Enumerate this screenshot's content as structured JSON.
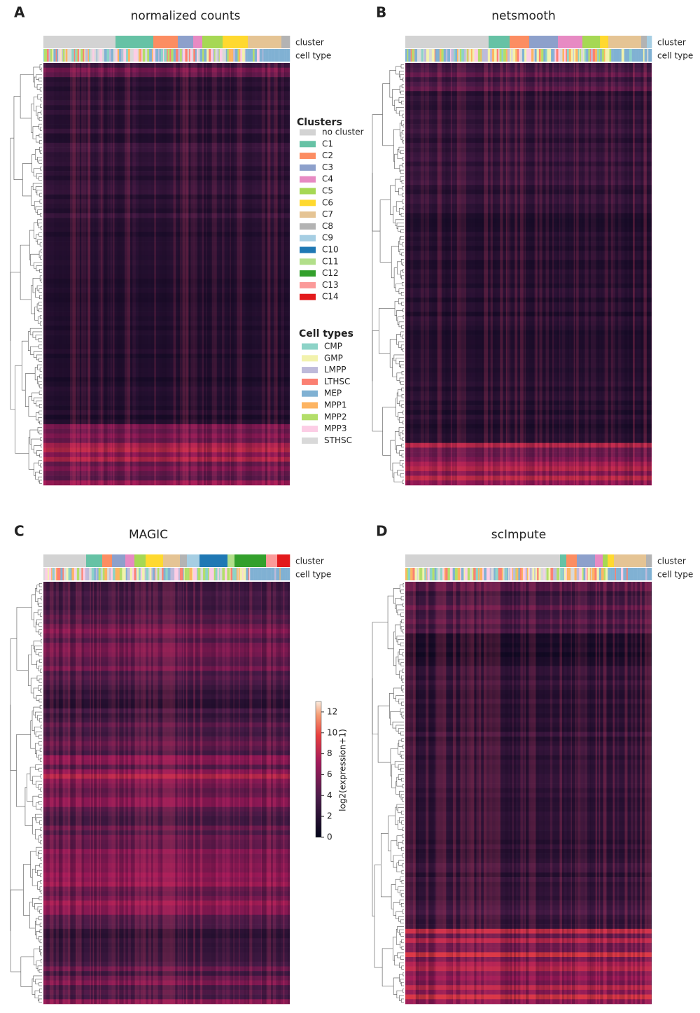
{
  "annotation_rows": [
    "cluster",
    "cell type"
  ],
  "panels": [
    {
      "label": "A",
      "title": "normalized counts",
      "cluster_bar": [
        {
          "cluster": "no cluster",
          "size": 103
        },
        {
          "cluster": "C1",
          "size": 54
        },
        {
          "cluster": "C2",
          "size": 35
        },
        {
          "cluster": "C3",
          "size": 22
        },
        {
          "cluster": "C4",
          "size": 13
        },
        {
          "cluster": "C5",
          "size": 29
        },
        {
          "cluster": "C6",
          "size": 36
        },
        {
          "cluster": "C7",
          "size": 48
        },
        {
          "cluster": "C8",
          "size": 12
        }
      ]
    },
    {
      "label": "B",
      "title": "netsmooth",
      "cluster_bar": [
        {
          "cluster": "no cluster",
          "size": 119
        },
        {
          "cluster": "C1",
          "size": 30
        },
        {
          "cluster": "C2",
          "size": 28
        },
        {
          "cluster": "C3",
          "size": 41
        },
        {
          "cluster": "C4",
          "size": 35
        },
        {
          "cluster": "C5",
          "size": 25
        },
        {
          "cluster": "C6",
          "size": 12
        },
        {
          "cluster": "C7",
          "size": 47
        },
        {
          "cluster": "C8",
          "size": 8
        },
        {
          "cluster": "C9",
          "size": 7
        }
      ]
    },
    {
      "label": "C",
      "title": "MAGIC",
      "cluster_bar": [
        {
          "cluster": "no cluster",
          "size": 61
        },
        {
          "cluster": "C1",
          "size": 23
        },
        {
          "cluster": "C2",
          "size": 14
        },
        {
          "cluster": "C3",
          "size": 19
        },
        {
          "cluster": "C4",
          "size": 13
        },
        {
          "cluster": "C5",
          "size": 16
        },
        {
          "cluster": "C6",
          "size": 25
        },
        {
          "cluster": "C7",
          "size": 24
        },
        {
          "cluster": "C8",
          "size": 10
        },
        {
          "cluster": "C9",
          "size": 18
        },
        {
          "cluster": "C10",
          "size": 40
        },
        {
          "cluster": "C11",
          "size": 10
        },
        {
          "cluster": "C12",
          "size": 45
        },
        {
          "cluster": "C13",
          "size": 16
        },
        {
          "cluster": "C14",
          "size": 18
        }
      ]
    },
    {
      "label": "D",
      "title": "scImpute",
      "cluster_bar": [
        {
          "cluster": "no cluster",
          "size": 221
        },
        {
          "cluster": "C1",
          "size": 9
        },
        {
          "cluster": "C2",
          "size": 15
        },
        {
          "cluster": "C3",
          "size": 26
        },
        {
          "cluster": "C4",
          "size": 11
        },
        {
          "cluster": "C5",
          "size": 7
        },
        {
          "cluster": "C6",
          "size": 9
        },
        {
          "cluster": "C7",
          "size": 46
        },
        {
          "cluster": "C8",
          "size": 8
        }
      ]
    }
  ],
  "clusters_legend": {
    "title": "Clusters",
    "items": [
      {
        "name": "no cluster",
        "color": "#d3d3d3"
      },
      {
        "name": "C1",
        "color": "#66c2a5"
      },
      {
        "name": "C2",
        "color": "#fc8d62"
      },
      {
        "name": "C3",
        "color": "#8da0cb"
      },
      {
        "name": "C4",
        "color": "#e78ac3"
      },
      {
        "name": "C5",
        "color": "#a6d854"
      },
      {
        "name": "C6",
        "color": "#ffd92f"
      },
      {
        "name": "C7",
        "color": "#e5c494"
      },
      {
        "name": "C8",
        "color": "#b3b3b3"
      },
      {
        "name": "C9",
        "color": "#a6cee3"
      },
      {
        "name": "C10",
        "color": "#1f78b4"
      },
      {
        "name": "C11",
        "color": "#b2df8a"
      },
      {
        "name": "C12",
        "color": "#33a02c"
      },
      {
        "name": "C13",
        "color": "#fb9a99"
      },
      {
        "name": "C14",
        "color": "#e31a1c"
      }
    ]
  },
  "cell_types_legend": {
    "title": "Cell types",
    "items": [
      {
        "name": "CMP",
        "color": "#8dd3c7"
      },
      {
        "name": "GMP",
        "color": "#f2f2ad"
      },
      {
        "name": "LMPP",
        "color": "#bebada"
      },
      {
        "name": "LTHSC",
        "color": "#fb8072"
      },
      {
        "name": "MEP",
        "color": "#80b1d3"
      },
      {
        "name": "MPP1",
        "color": "#fdb462"
      },
      {
        "name": "MPP2",
        "color": "#b3de69"
      },
      {
        "name": "MPP3",
        "color": "#fccde5"
      },
      {
        "name": "STHSC",
        "color": "#d9d9d9"
      }
    ]
  },
  "colorbar": {
    "label": "log2(expression+1)",
    "lim": [
      0,
      13
    ],
    "ticks": [
      0,
      2,
      4,
      6,
      8,
      10,
      12
    ]
  }
}
